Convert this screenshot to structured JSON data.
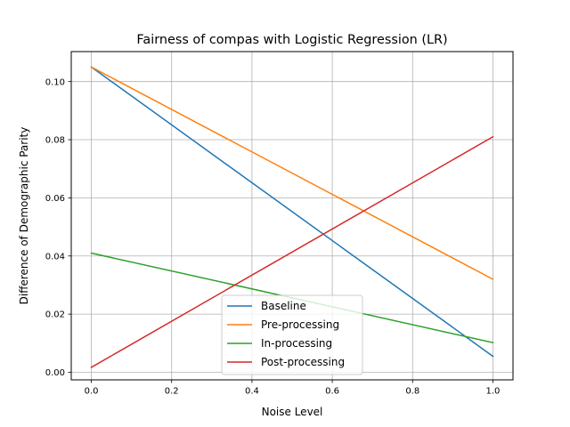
{
  "chart_data": {
    "type": "line",
    "title": "Fairness of compas with Logistic Regression (LR)",
    "xlabel": "Noise Level",
    "ylabel": "Difference of Demographic Parity",
    "xlim": [
      -0.05,
      1.05
    ],
    "ylim": [
      -0.0026,
      0.1103
    ],
    "xticks": [
      0.0,
      0.2,
      0.4,
      0.6,
      0.8,
      1.0
    ],
    "xtick_labels": [
      "0.0",
      "0.2",
      "0.4",
      "0.6",
      "0.8",
      "1.0"
    ],
    "yticks": [
      0.0,
      0.02,
      0.04,
      0.06,
      0.08,
      0.1
    ],
    "ytick_labels": [
      "0.00",
      "0.02",
      "0.04",
      "0.06",
      "0.08",
      "0.10"
    ],
    "grid": true,
    "legend_position": "bottom-center",
    "x": [
      0.0,
      1.0
    ],
    "series": [
      {
        "name": "Baseline",
        "values": [
          0.105,
          0.0055
        ],
        "color": "#1f77b4"
      },
      {
        "name": "Pre-processing",
        "values": [
          0.105,
          0.032
        ],
        "color": "#ff7f0e"
      },
      {
        "name": "In-processing",
        "values": [
          0.041,
          0.0102
        ],
        "color": "#2ca02c"
      },
      {
        "name": "Post-processing",
        "values": [
          0.0017,
          0.081
        ],
        "color": "#d62728"
      }
    ]
  }
}
